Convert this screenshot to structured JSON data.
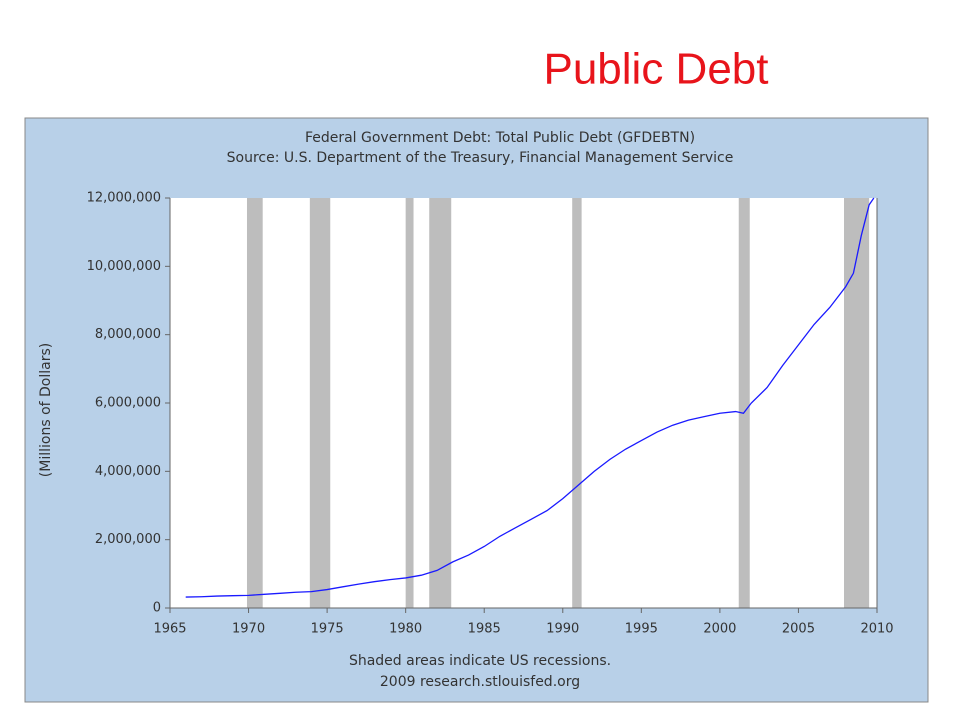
{
  "slide_title": "Public Debt",
  "chart_data": {
    "type": "line",
    "title": "Federal Government Debt: Total Public Debt (GFDEBTN)",
    "subtitle": "Source: U.S. Department of the Treasury, Financial Management Service",
    "y_label": "(Millions of Dollars)",
    "notes": [
      "Shaded areas indicate US recessions.",
      "2009 research.stlouisfed.org"
    ],
    "x": [
      1966,
      1967,
      1968,
      1969,
      1970,
      1971,
      1972,
      1973,
      1974,
      1975,
      1976,
      1977,
      1978,
      1979,
      1980,
      1981,
      1982,
      1983,
      1984,
      1985,
      1986,
      1987,
      1988,
      1989,
      1990,
      1991,
      1992,
      1993,
      1994,
      1995,
      1996,
      1997,
      1998,
      1999,
      2000,
      2001,
      2001.5,
      2002,
      2003,
      2004,
      2005,
      2006,
      2007,
      2008,
      2008.5,
      2009,
      2009.5,
      2009.8
    ],
    "values": [
      320000,
      330000,
      350000,
      360000,
      370000,
      400000,
      430000,
      460000,
      480000,
      540000,
      620000,
      700000,
      770000,
      830000,
      880000,
      960000,
      1100000,
      1350000,
      1550000,
      1800000,
      2100000,
      2350000,
      2600000,
      2850000,
      3200000,
      3600000,
      4000000,
      4350000,
      4650000,
      4900000,
      5150000,
      5350000,
      5500000,
      5600000,
      5700000,
      5750000,
      5700000,
      6000000,
      6450000,
      7100000,
      7700000,
      8300000,
      8800000,
      9400000,
      9800000,
      10900000,
      11800000,
      12000000
    ],
    "color": "#1a1aff",
    "recessions": [
      [
        1969.9,
        1970.9
      ],
      [
        1973.9,
        1975.2
      ],
      [
        1980.0,
        1980.5
      ],
      [
        1981.5,
        1982.9
      ],
      [
        1990.6,
        1991.2
      ],
      [
        2001.2,
        2001.9
      ],
      [
        2007.9,
        2009.5
      ]
    ],
    "recession_color": "#bdbdbd",
    "xlim": [
      1965,
      2010
    ],
    "xticks": [
      1965,
      1970,
      1975,
      1980,
      1985,
      1990,
      1995,
      2000,
      2005,
      2010
    ],
    "ylim": [
      0,
      12000000
    ],
    "yticks": [
      0,
      {
        "value": 2000000,
        "label": "2,000,000"
      },
      {
        "value": 4000000,
        "label": "4,000,000"
      },
      {
        "value": 6000000,
        "label": "6,000,000"
      },
      {
        "value": 8000000,
        "label": "8,000,000"
      },
      {
        "value": 10000000,
        "label": "10,000,000"
      },
      {
        "value": 12000000,
        "label": "12,000,000"
      }
    ]
  }
}
